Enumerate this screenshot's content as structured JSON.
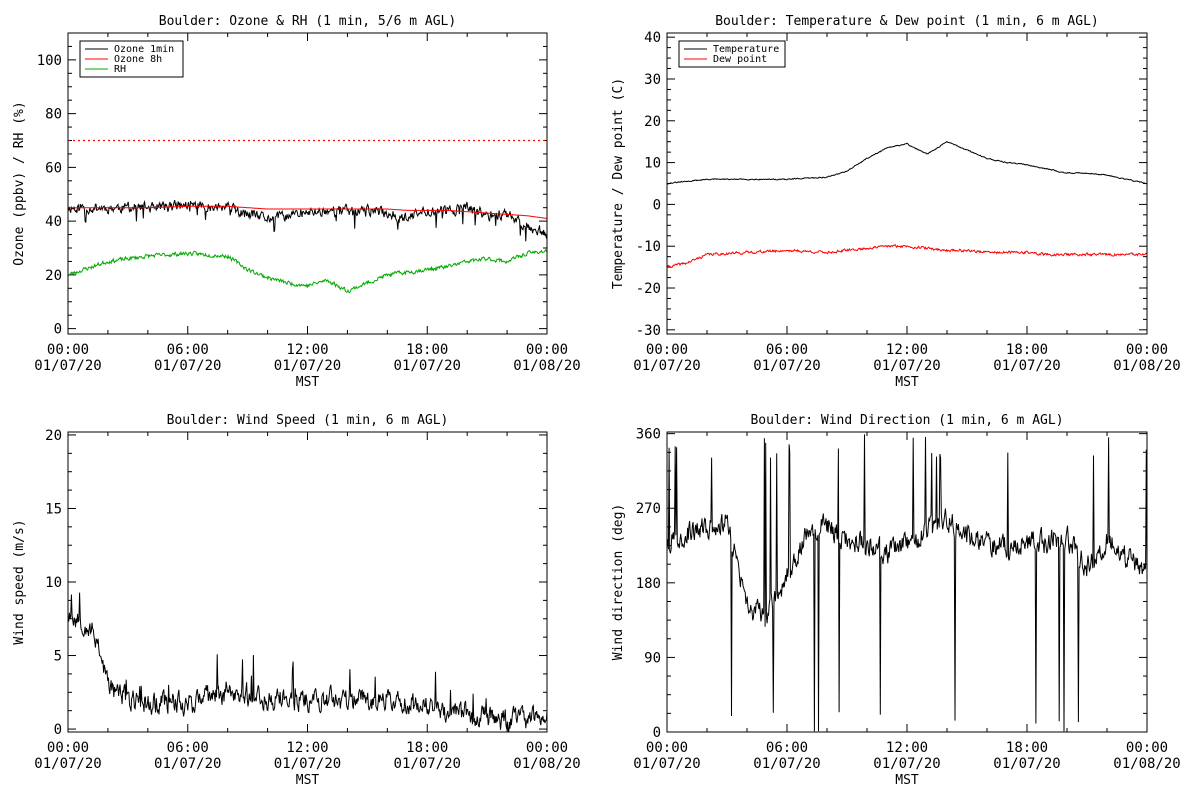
{
  "chart_data": [
    {
      "id": "ozone_rh",
      "type": "line",
      "title": "Boulder: Ozone & RH (1 min, 5/6 m AGL)",
      "ylabel": "Ozone (ppbv) / RH (%)",
      "xlabel": "MST",
      "ylim": [
        -2,
        110
      ],
      "yticks": [
        0,
        20,
        40,
        60,
        80,
        100
      ],
      "xticks": [
        {
          "time": "00:00",
          "date": "01/07/20"
        },
        {
          "time": "06:00",
          "date": "01/07/20"
        },
        {
          "time": "12:00",
          "date": "01/07/20"
        },
        {
          "time": "18:00",
          "date": "01/07/20"
        },
        {
          "time": "00:00",
          "date": "01/08/20"
        }
      ],
      "x_hours": [
        0,
        2,
        4,
        6,
        8,
        9,
        10,
        11,
        12,
        13,
        14,
        15,
        16,
        17,
        18,
        19,
        20,
        21,
        22,
        23,
        24
      ],
      "reference_line": {
        "value": 70,
        "color": "#ff0000",
        "style": "dotted"
      },
      "series": [
        {
          "name": "Ozone 1min",
          "color": "#000000",
          "noise": 3.0,
          "seed": 11,
          "values": [
            45,
            45,
            45,
            46,
            45,
            42,
            41,
            42,
            43,
            44,
            44,
            44,
            43,
            41,
            44,
            44,
            45,
            42,
            43,
            38,
            36
          ]
        },
        {
          "name": "Ozone 8h",
          "color": "#ff0000",
          "noise": 0,
          "values": [
            45,
            45,
            45,
            45.5,
            45.5,
            45,
            44.5,
            44.5,
            44.5,
            44.5,
            44.5,
            44.5,
            44.5,
            44,
            44,
            44,
            43.5,
            43,
            42.5,
            42,
            41
          ]
        },
        {
          "name": "RH",
          "color": "#00aa00",
          "noise": 1.2,
          "seed": 23,
          "values": [
            20,
            25,
            27,
            28,
            27,
            22,
            19,
            17,
            16,
            18,
            14,
            17,
            20,
            21,
            22,
            23,
            25,
            26,
            25,
            28,
            29
          ]
        }
      ]
    },
    {
      "id": "temp_dew",
      "type": "line",
      "title": "Boulder: Temperature & Dew point (1 min, 6 m AGL)",
      "ylabel": "Temperature / Dew point (C)",
      "xlabel": "MST",
      "ylim": [
        -31,
        41
      ],
      "yticks": [
        -30,
        -20,
        -10,
        0,
        10,
        20,
        30,
        40
      ],
      "xticks": [
        {
          "time": "00:00",
          "date": "01/07/20"
        },
        {
          "time": "06:00",
          "date": "01/07/20"
        },
        {
          "time": "12:00",
          "date": "01/07/20"
        },
        {
          "time": "18:00",
          "date": "01/07/20"
        },
        {
          "time": "00:00",
          "date": "01/08/20"
        }
      ],
      "x_hours": [
        0,
        1,
        2,
        4,
        6,
        8,
        9,
        10,
        11,
        12,
        13,
        14,
        15,
        16,
        17,
        18,
        19,
        20,
        21,
        22,
        23,
        24
      ],
      "series": [
        {
          "name": "Temperature",
          "color": "#000000",
          "noise": 0.2,
          "seed": 31,
          "values": [
            5,
            5.5,
            6,
            6,
            6,
            6.5,
            8,
            11,
            13.5,
            14.5,
            12,
            15,
            13,
            11,
            10,
            9.5,
            8.5,
            7.5,
            7.5,
            7,
            6,
            5
          ]
        },
        {
          "name": "Dew point",
          "color": "#ff0000",
          "noise": 0.5,
          "seed": 41,
          "values": [
            -15,
            -14,
            -12,
            -11.5,
            -11,
            -11.5,
            -11,
            -10.5,
            -10,
            -10,
            -10.5,
            -11,
            -11,
            -11.5,
            -11.5,
            -11.5,
            -12,
            -12,
            -12,
            -12,
            -12,
            -12
          ]
        }
      ]
    },
    {
      "id": "wind_speed",
      "type": "line",
      "title": "Boulder: Wind Speed (1 min, 6 m AGL)",
      "ylabel": "Wind speed (m/s)",
      "xlabel": "MST",
      "ylim": [
        -0.2,
        20.2
      ],
      "yticks": [
        0,
        5,
        10,
        15,
        20
      ],
      "xticks": [
        {
          "time": "00:00",
          "date": "01/07/20"
        },
        {
          "time": "06:00",
          "date": "01/07/20"
        },
        {
          "time": "12:00",
          "date": "01/07/20"
        },
        {
          "time": "18:00",
          "date": "01/07/20"
        },
        {
          "time": "00:00",
          "date": "01/08/20"
        }
      ],
      "x_hours": [
        0,
        0.5,
        1,
        1.5,
        2,
        3,
        4,
        6,
        8,
        10,
        12,
        14,
        16,
        18,
        20,
        22,
        24
      ],
      "series": [
        {
          "name": "Wind speed",
          "color": "#000000",
          "noise": 1.2,
          "seed": 53,
          "values": [
            8,
            7.5,
            7,
            6,
            3,
            2,
            1.8,
            1.8,
            2.5,
            2,
            2,
            2,
            2,
            1.5,
            1,
            0.6,
            0.8
          ]
        }
      ]
    },
    {
      "id": "wind_dir",
      "type": "line",
      "title": "Boulder: Wind Direction (1 min, 6 m AGL)",
      "ylabel": "Wind direction (deg)",
      "xlabel": "MST",
      "ylim": [
        0,
        362
      ],
      "yticks": [
        0,
        90,
        180,
        270,
        360
      ],
      "xticks": [
        {
          "time": "00:00",
          "date": "01/07/20"
        },
        {
          "time": "06:00",
          "date": "01/07/20"
        },
        {
          "time": "12:00",
          "date": "01/07/20"
        },
        {
          "time": "18:00",
          "date": "01/07/20"
        },
        {
          "time": "00:00",
          "date": "01/08/20"
        }
      ],
      "x_hours": [
        0,
        1,
        2,
        3,
        4,
        5,
        6,
        7,
        8,
        9,
        10,
        11,
        12,
        13,
        14,
        15,
        16,
        17,
        18,
        19,
        20,
        21,
        22,
        23,
        24
      ],
      "series": [
        {
          "name": "Wind direction",
          "color": "#000000",
          "noise": 22,
          "seed": 67,
          "values": [
            230,
            240,
            245,
            255,
            150,
            140,
            190,
            240,
            250,
            230,
            230,
            215,
            225,
            240,
            260,
            235,
            230,
            225,
            230,
            230,
            235,
            200,
            230,
            210,
            190
          ]
        }
      ]
    }
  ]
}
